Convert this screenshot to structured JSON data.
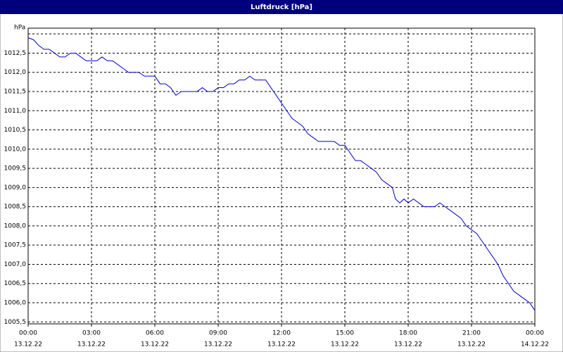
{
  "chart_data": {
    "type": "line",
    "title": "Luftdruck [hPa]",
    "x": [
      0,
      0.25,
      0.5,
      0.75,
      1,
      1.25,
      1.5,
      1.75,
      2,
      2.25,
      2.5,
      2.75,
      3,
      3.25,
      3.5,
      3.75,
      4,
      4.25,
      4.5,
      4.75,
      5,
      5.25,
      5.5,
      5.75,
      6,
      6.25,
      6.5,
      6.75,
      7,
      7.25,
      7.5,
      8,
      8.25,
      8.5,
      8.75,
      9,
      9.25,
      9.5,
      9.75,
      10,
      10.25,
      10.5,
      10.75,
      11,
      11.25,
      11.5,
      11.75,
      12,
      12.25,
      12.5,
      12.75,
      13,
      13.25,
      13.5,
      13.75,
      14,
      14.5,
      14.75,
      15,
      15.25,
      15.5,
      15.75,
      16,
      16.25,
      16.5,
      16.75,
      17,
      17.25,
      17.4,
      17.6,
      17.8,
      18,
      18.25,
      18.5,
      18.75,
      19,
      19.25,
      19.5,
      19.75,
      20,
      20.25,
      20.5,
      20.75,
      21,
      21.25,
      21.5,
      21.75,
      22,
      22.25,
      22.5,
      22.75,
      23,
      23.25,
      23.5,
      23.75,
      24
    ],
    "series": [
      {
        "name": "Luftdruck",
        "color": "#0000cc",
        "values": [
          1012.9,
          1012.85,
          1012.7,
          1012.6,
          1012.6,
          1012.5,
          1012.4,
          1012.4,
          1012.5,
          1012.5,
          1012.4,
          1012.3,
          1012.3,
          1012.3,
          1012.4,
          1012.3,
          1012.3,
          1012.2,
          1012.1,
          1012.0,
          1012.0,
          1012.0,
          1011.9,
          1011.9,
          1011.9,
          1011.7,
          1011.7,
          1011.6,
          1011.4,
          1011.5,
          1011.5,
          1011.5,
          1011.6,
          1011.5,
          1011.5,
          1011.6,
          1011.6,
          1011.7,
          1011.7,
          1011.8,
          1011.8,
          1011.9,
          1011.8,
          1011.8,
          1011.8,
          1011.6,
          1011.4,
          1011.2,
          1011.0,
          1010.8,
          1010.7,
          1010.6,
          1010.4,
          1010.3,
          1010.2,
          1010.2,
          1010.2,
          1010.1,
          1010.1,
          1009.9,
          1009.7,
          1009.7,
          1009.6,
          1009.5,
          1009.4,
          1009.2,
          1009.1,
          1009.0,
          1008.7,
          1008.6,
          1008.7,
          1008.6,
          1008.7,
          1008.6,
          1008.5,
          1008.5,
          1008.5,
          1008.6,
          1008.5,
          1008.4,
          1008.3,
          1008.2,
          1008.0,
          1007.9,
          1007.8,
          1007.6,
          1007.4,
          1007.2,
          1007.0,
          1006.7,
          1006.5,
          1006.3,
          1006.2,
          1006.1,
          1006.0,
          1005.8
        ]
      }
    ],
    "xlim": [
      0,
      24
    ],
    "xticks": [
      {
        "value": 0,
        "label": "00:00"
      },
      {
        "value": 3,
        "label": "03:00"
      },
      {
        "value": 6,
        "label": "06:00"
      },
      {
        "value": 9,
        "label": "09:00"
      },
      {
        "value": 12,
        "label": "12:00"
      },
      {
        "value": 15,
        "label": "15:00"
      },
      {
        "value": 18,
        "label": "18:00"
      },
      {
        "value": 21,
        "label": "21:00"
      },
      {
        "value": 24,
        "label": "00:00"
      }
    ],
    "xtick_dates": [
      "13.12.22",
      "13.12.22",
      "13.12.22",
      "13.12.22",
      "13.12.22",
      "13.12.22",
      "13.12.22",
      "13.12.22",
      "14.12.22"
    ],
    "ylim": [
      1005.45,
      1013.15
    ],
    "yticks": [
      {
        "value": 1005.5,
        "label": "1005,5"
      },
      {
        "value": 1006,
        "label": "1006,0"
      },
      {
        "value": 1006.5,
        "label": "1006,5"
      },
      {
        "value": 1007,
        "label": "1007,0"
      },
      {
        "value": 1007.5,
        "label": "1007,5"
      },
      {
        "value": 1008,
        "label": "1008,0"
      },
      {
        "value": 1008.5,
        "label": "1008,5"
      },
      {
        "value": 1009,
        "label": "1009,0"
      },
      {
        "value": 1009.5,
        "label": "1009,5"
      },
      {
        "value": 1010,
        "label": "1010,0"
      },
      {
        "value": 1010.5,
        "label": "1010,5"
      },
      {
        "value": 1011,
        "label": "1011,0"
      },
      {
        "value": 1011.5,
        "label": "1011,5"
      },
      {
        "value": 1012,
        "label": "1012,0"
      },
      {
        "value": 1012.5,
        "label": "1012,5"
      },
      {
        "value": 1013,
        "label": "hPa"
      }
    ],
    "grid": true
  }
}
